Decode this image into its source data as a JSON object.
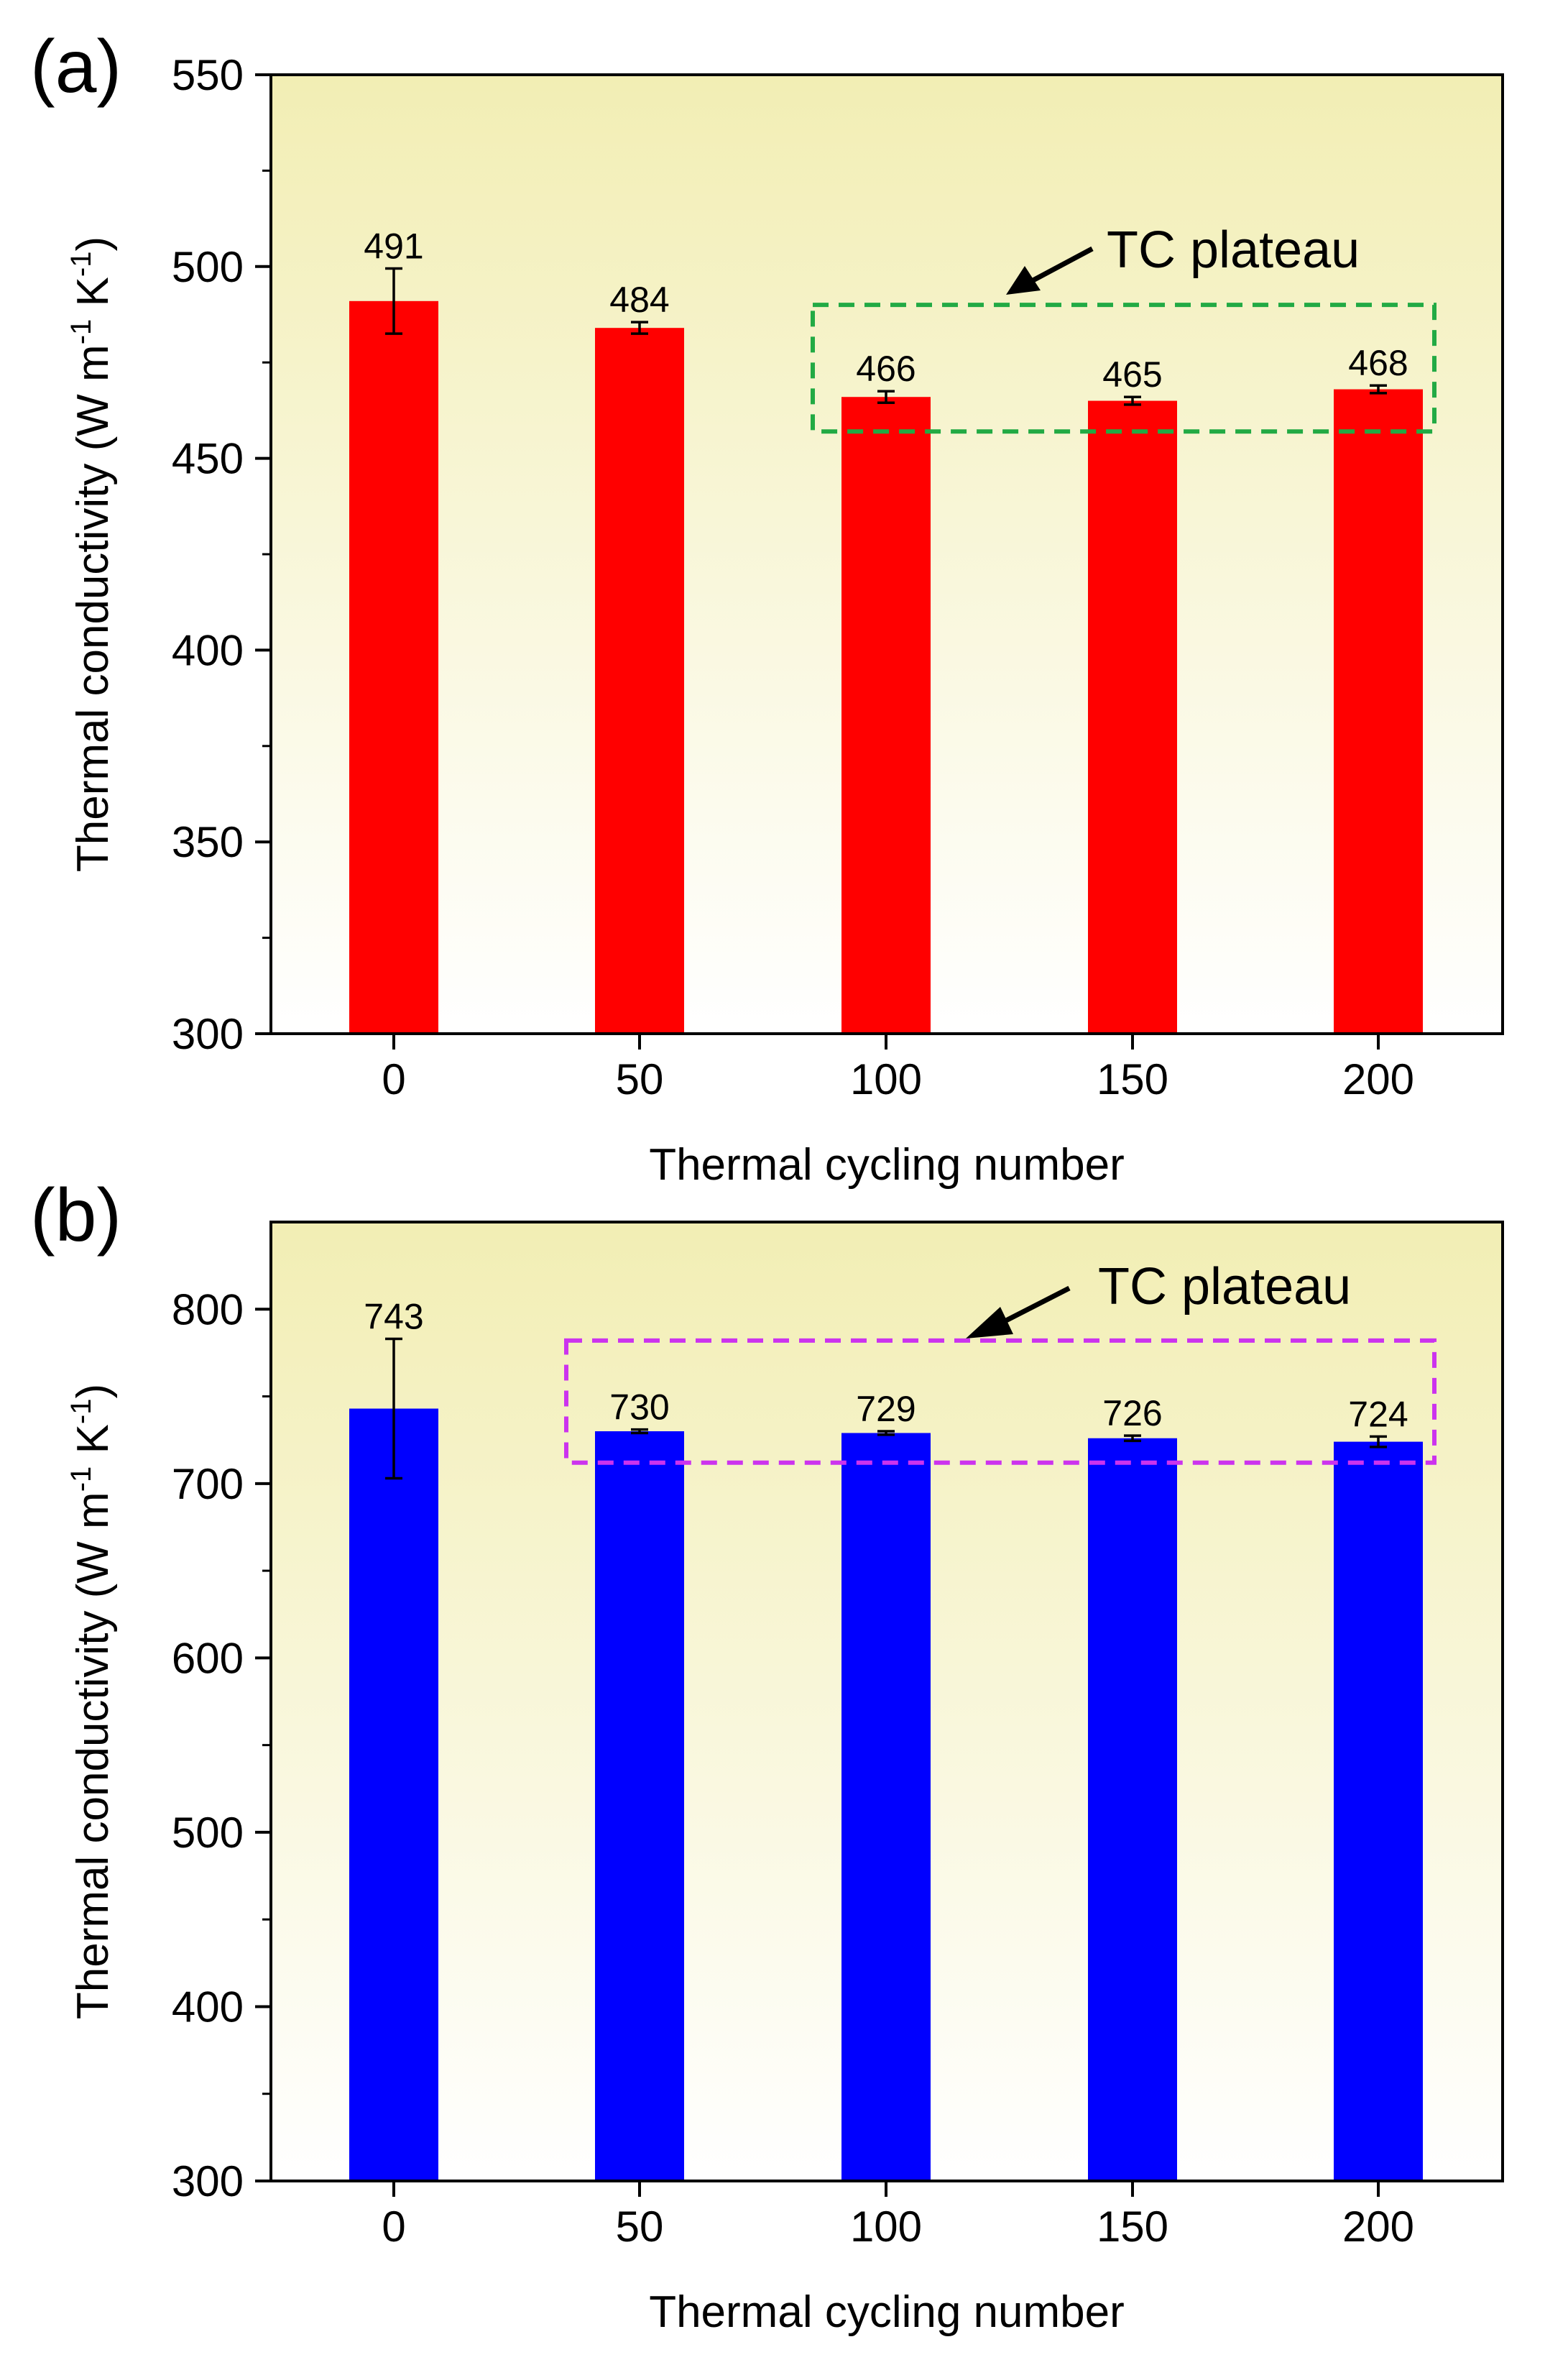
{
  "chart_data": [
    {
      "panel_label": "(a)",
      "type": "bar",
      "categories": [
        "0",
        "50",
        "100",
        "150",
        "200"
      ],
      "values": [
        491,
        484,
        466,
        465,
        468
      ],
      "value_labels": [
        "491",
        "484",
        "466",
        "465",
        "468"
      ],
      "error": [
        8.5,
        1.5,
        1.5,
        1,
        1
      ],
      "bar_color": "#ff0000",
      "xlabel": "Thermal cycling number",
      "ylabel": {
        "main": "Thermal conductivity (W m",
        "sup1": "-1",
        "mid": " K",
        "sup2": "-1",
        "end": ")"
      },
      "ylim": [
        300,
        550
      ],
      "yticks": [
        300,
        350,
        400,
        450,
        500,
        550
      ],
      "yticks_display": [
        "300",
        "350",
        "400",
        "450",
        "500",
        "550"
      ],
      "minor_step": 25,
      "annotation": {
        "text": "TC plateau",
        "box_color": "#22aa44",
        "box_from_category": "100",
        "box_to_category": "200",
        "box_ylim": [
          457,
          490
        ]
      },
      "background_gradient": [
        "#f2eeb4",
        "#ffffff"
      ]
    },
    {
      "panel_label": "(b)",
      "type": "bar",
      "categories": [
        "0",
        "50",
        "100",
        "150",
        "200"
      ],
      "values": [
        743,
        730,
        729,
        726,
        724
      ],
      "value_labels": [
        "743",
        "730",
        "729",
        "726",
        "724"
      ],
      "error": [
        40,
        1,
        1,
        1.5,
        3
      ],
      "bar_color": "#0000ff",
      "xlabel": "Thermal cycling number",
      "ylabel": {
        "main": "Thermal conductivity (W m",
        "sup1": "-1",
        "mid": " K",
        "sup2": "-1",
        "end": ")"
      },
      "ylim": [
        300,
        850
      ],
      "yticks": [
        300,
        400,
        500,
        600,
        700,
        800
      ],
      "yticks_display": [
        "300",
        "400",
        "500",
        "600",
        "700",
        "800"
      ],
      "minor_step": 50,
      "annotation": {
        "text": "TC plateau",
        "box_color": "#cc33ee",
        "box_from_category": "50",
        "box_to_category": "200",
        "box_ylim": [
          712,
          782
        ]
      },
      "background_gradient": [
        "#f2eeb4",
        "#ffffff"
      ]
    }
  ]
}
